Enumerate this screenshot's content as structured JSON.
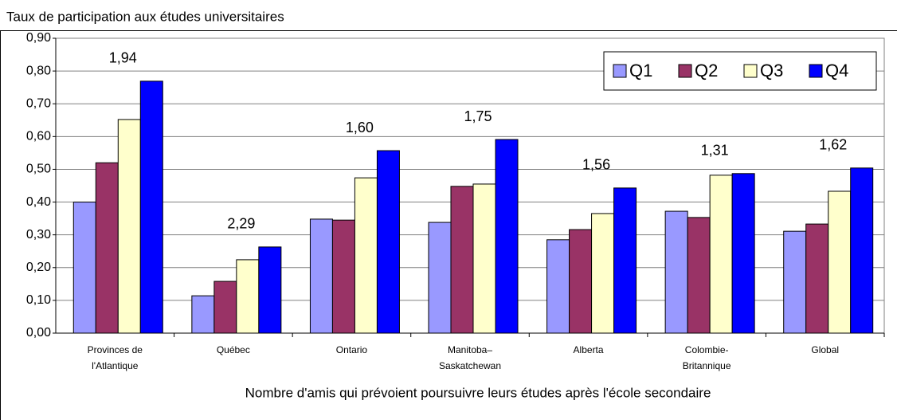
{
  "chart_data": {
    "type": "bar",
    "y_label": "Taux de participation aux études universitaires",
    "x_label": "Nombre d'amis qui prévoient poursuivre leurs études après l'école secondaire",
    "categories": [
      [
        "Provinces de",
        "l'Atlantique"
      ],
      [
        "Québec"
      ],
      [
        "Ontario"
      ],
      [
        "Manitoba–",
        "Saskatchewan"
      ],
      [
        "Alberta"
      ],
      [
        "Colombie-",
        "Britannique"
      ],
      [
        "Global"
      ]
    ],
    "series": [
      {
        "name": "Q1",
        "color": "#9999ff",
        "values": [
          0.4,
          0.114,
          0.348,
          0.338,
          0.285,
          0.372,
          0.311
        ]
      },
      {
        "name": "Q2",
        "color": "#993366",
        "values": [
          0.52,
          0.158,
          0.345,
          0.448,
          0.316,
          0.353,
          0.333
        ]
      },
      {
        "name": "Q3",
        "color": "#ffffcc",
        "values": [
          0.652,
          0.224,
          0.474,
          0.455,
          0.365,
          0.482,
          0.433
        ]
      },
      {
        "name": "Q4",
        "color": "#0000ff",
        "values": [
          0.769,
          0.263,
          0.557,
          0.591,
          0.443,
          0.487,
          0.504
        ]
      }
    ],
    "annotations": [
      "1,94",
      "2,29",
      "1,60",
      "1,75",
      "1,56",
      "1,31",
      "1,62"
    ],
    "ylim": [
      0,
      0.9
    ],
    "yticks": [
      {
        "value": 0,
        "label": "0,00"
      },
      {
        "value": 0.1,
        "label": "0,10"
      },
      {
        "value": 0.2,
        "label": "0,20"
      },
      {
        "value": 0.3,
        "label": "0,30"
      },
      {
        "value": 0.4,
        "label": "0,40"
      },
      {
        "value": 0.5,
        "label": "0,50"
      },
      {
        "value": 0.6,
        "label": "0,60"
      },
      {
        "value": 0.7,
        "label": "0,70"
      },
      {
        "value": 0.8,
        "label": "0,80"
      },
      {
        "value": 0.9,
        "label": "0,90"
      }
    ],
    "grid": true,
    "legend": "top-right"
  }
}
